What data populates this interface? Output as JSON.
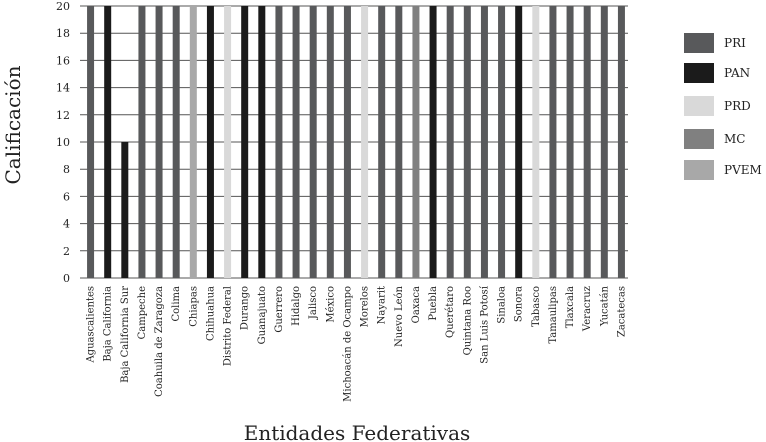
{
  "chart_data": {
    "type": "bar",
    "title": "",
    "xlabel": "Entidades Federativas",
    "ylabel": "Calificación",
    "ylim": [
      0,
      20
    ],
    "yticks": [
      0,
      2,
      4,
      6,
      8,
      10,
      12,
      14,
      16,
      18,
      20
    ],
    "grid": "horizontal",
    "legend_position": "right",
    "categories": [
      "Aguascalientes",
      "Baja California",
      "Baja California Sur",
      "Campeche",
      "Coahuila de Zaragoza",
      "Colima",
      "Chiapas",
      "Chihuahua",
      "Distrito Federal",
      "Durango",
      "Guanajuato",
      "Guerrero",
      "Hidalgo",
      "Jalisco",
      "México",
      "Michoacán de Ocampo",
      "Morelos",
      "Nayarit",
      "Nuevo León",
      "Oaxaca",
      "Puebla",
      "Querétaro",
      "Quintana Roo",
      "San Luis Potosí",
      "Sinaloa",
      "Sonora",
      "Tabasco",
      "Tamaulipas",
      "Tlaxcala",
      "Veracruz",
      "Yucatán",
      "Zacatecas"
    ],
    "values": [
      20,
      20,
      10,
      20,
      20,
      20,
      20,
      20,
      20,
      20,
      20,
      20,
      20,
      20,
      20,
      20,
      20,
      20,
      20,
      20,
      20,
      20,
      20,
      20,
      20,
      20,
      20,
      20,
      20,
      20,
      20,
      20
    ],
    "party": [
      "PRI",
      "PAN",
      "PAN",
      "PRI",
      "PRI",
      "PRI",
      "PVEM",
      "PAN",
      "PRD",
      "PAN",
      "PAN",
      "PRI",
      "PRI",
      "PRI",
      "PRI",
      "PRI",
      "PRD",
      "PRI",
      "PRI",
      "MC",
      "PAN",
      "PRI",
      "PRI",
      "PRI",
      "PRI",
      "PAN",
      "PRD",
      "PRI",
      "PRI",
      "PRI",
      "PRI",
      "PRI"
    ],
    "series": [
      {
        "name": "PRI",
        "color": "#58595b"
      },
      {
        "name": "PAN",
        "color": "#1b1b1b"
      },
      {
        "name": "PRD",
        "color": "#d9d9d9"
      },
      {
        "name": "MC",
        "color": "#808080"
      },
      {
        "name": "PVEM",
        "color": "#a8a8a8"
      }
    ]
  }
}
